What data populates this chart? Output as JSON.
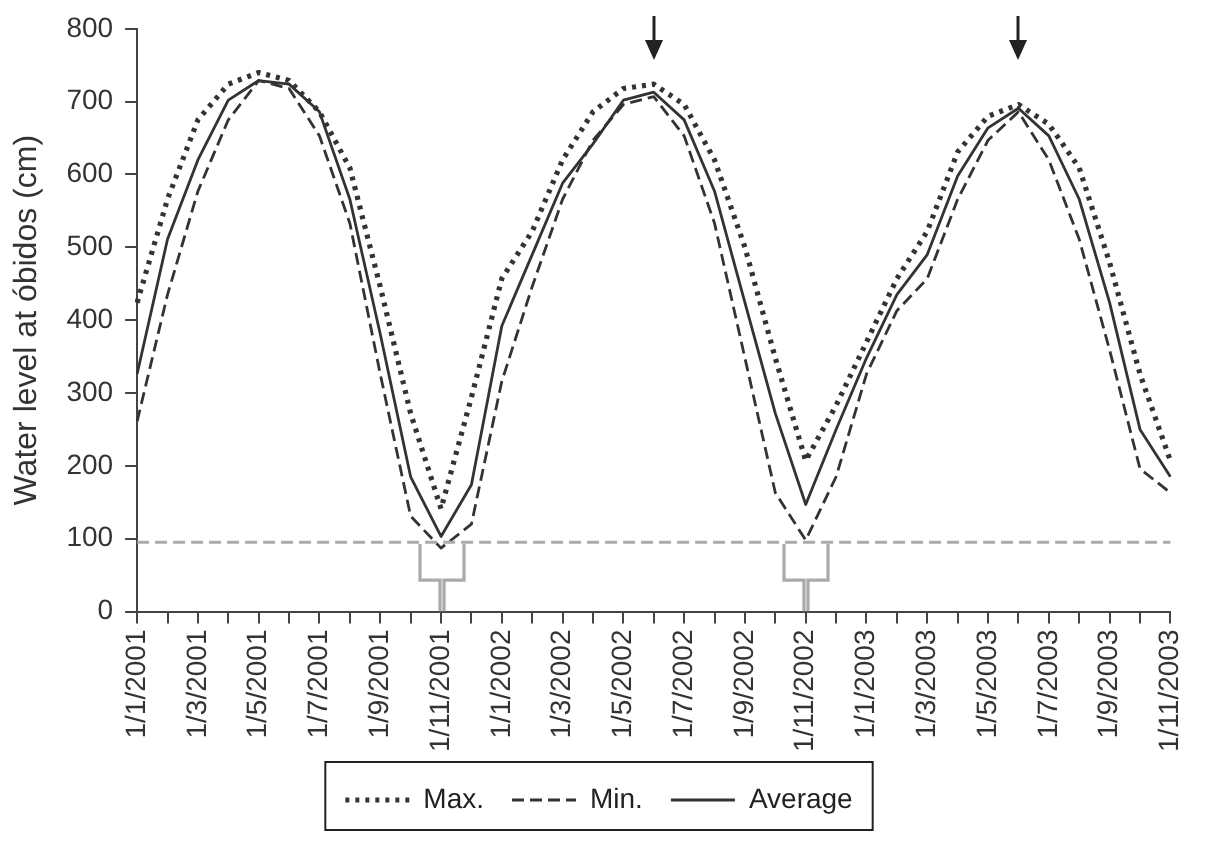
{
  "chart_data": {
    "type": "line",
    "ylabel": "Water level at óbidos (cm)",
    "categories": [
      "1/1/2001",
      null,
      "1/3/2001",
      null,
      "1/5/2001",
      null,
      "1/7/2001",
      null,
      "1/9/2001",
      null,
      "1/11/2001",
      null,
      "1/1/2002",
      null,
      "1/3/2002",
      null,
      "1/5/2002",
      null,
      "1/7/2002",
      null,
      "1/9/2002",
      null,
      "1/11/2002",
      null,
      "1/1/2003",
      null,
      "1/3/2003",
      null,
      "1/5/2003",
      null,
      "1/7/2003",
      null,
      "1/9/2003",
      null,
      "1/11/2003"
    ],
    "series": [
      {
        "name": "Max.",
        "color": "#333333",
        "line_style": "dotted",
        "values": [
          424,
          566,
          675,
          724,
          740,
          729,
          686,
          609,
          446,
          272,
          141,
          294,
          457,
          522,
          620,
          686,
          718,
          724,
          696,
          620,
          500,
          348,
          207,
          283,
          370,
          457,
          522,
          631,
          680,
          696,
          669,
          609,
          479,
          326,
          207
        ]
      },
      {
        "name": "Min.",
        "color": "#333333",
        "line_style": "dashed",
        "values": [
          261,
          435,
          577,
          675,
          729,
          718,
          653,
          533,
          326,
          131,
          87,
          120,
          316,
          446,
          566,
          647,
          696,
          707,
          653,
          533,
          348,
          163,
          98,
          185,
          326,
          413,
          457,
          566,
          647,
          686,
          620,
          511,
          359,
          196,
          163
        ]
      },
      {
        "name": "Average",
        "color": "#333333",
        "line_style": "solid",
        "values": [
          326,
          511,
          620,
          702,
          729,
          724,
          686,
          566,
          381,
          185,
          103,
          174,
          392,
          490,
          588,
          642,
          702,
          713,
          675,
          577,
          424,
          272,
          147,
          250,
          348,
          435,
          490,
          598,
          664,
          691,
          653,
          566,
          424,
          250,
          185
        ]
      }
    ],
    "ylim": [
      0,
      800
    ],
    "yticks": [
      0,
      100,
      200,
      300,
      400,
      500,
      600,
      700,
      800
    ],
    "ref_lines": [
      {
        "axis": "y",
        "value": 95,
        "color": "#aaaaaa",
        "line_style": "dashed"
      }
    ],
    "grid": false,
    "legend": "bottom",
    "marker": "none"
  }
}
